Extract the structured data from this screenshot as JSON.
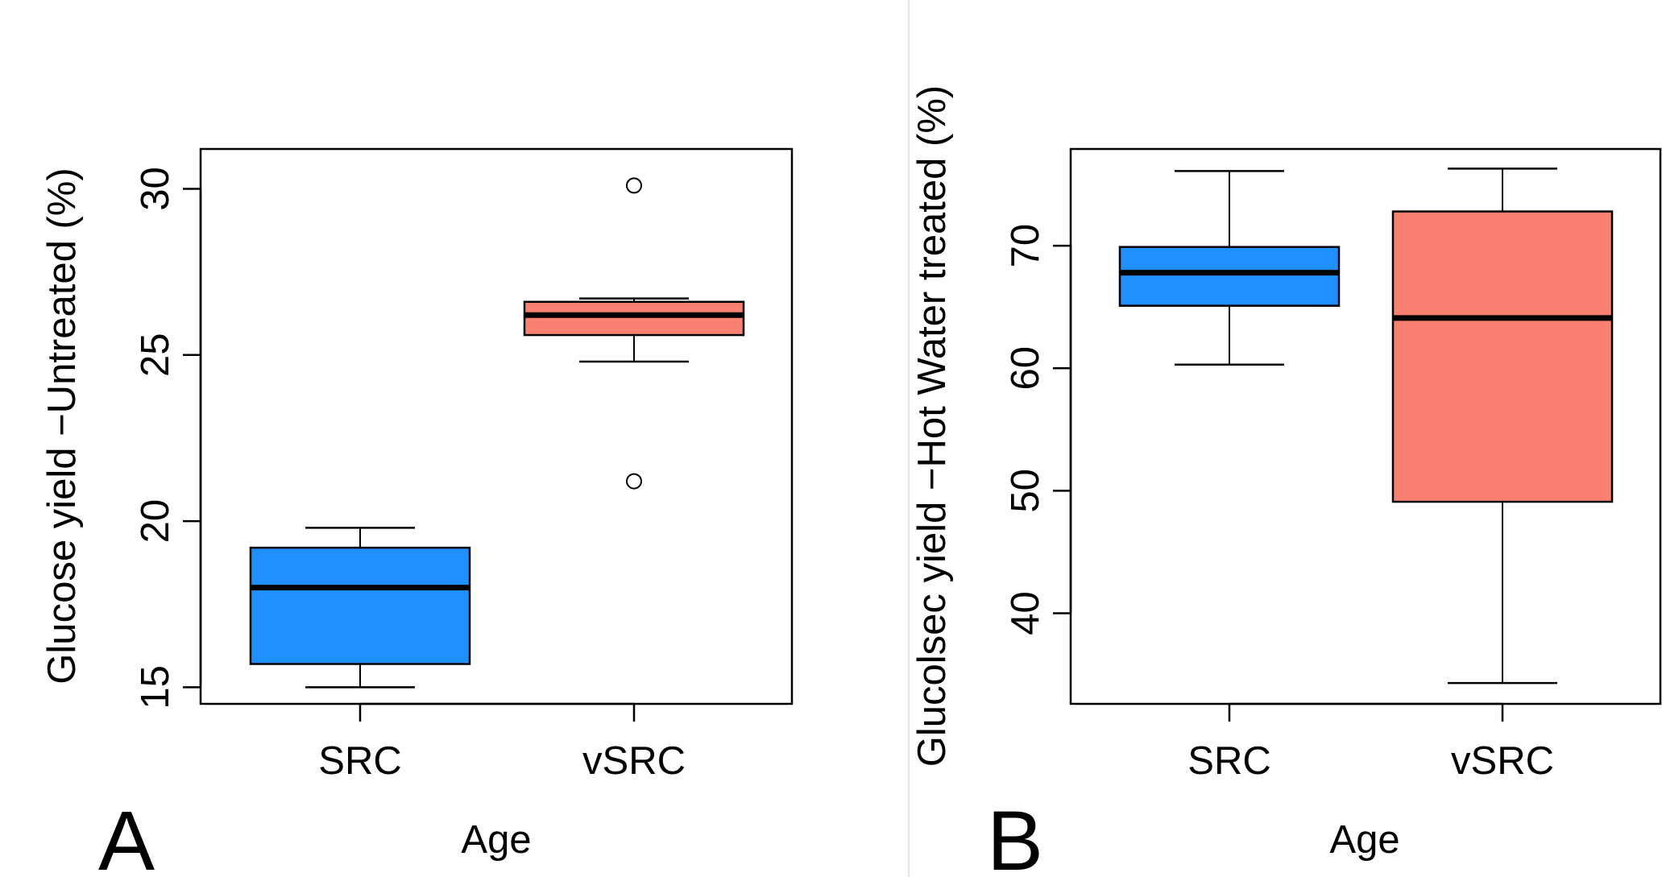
{
  "chart_data": [
    {
      "type": "box",
      "panel_label": "A",
      "title": "",
      "xlabel": "Age",
      "ylabel": "Glucose yield −Untreated (%)",
      "ylim": [
        14.5,
        31.2
      ],
      "yticks": [
        15,
        20,
        25,
        30
      ],
      "categories": [
        "SRC",
        "vSRC"
      ],
      "colors": [
        "#1e90ff",
        "#fa8072"
      ],
      "boxes": [
        {
          "category": "SRC",
          "whisker_low": 15.0,
          "q1": 15.7,
          "median": 18.0,
          "q3": 19.2,
          "whisker_high": 19.8,
          "outliers": []
        },
        {
          "category": "vSRC",
          "whisker_low": 24.8,
          "q1": 25.6,
          "median": 26.2,
          "q3": 26.6,
          "whisker_high": 26.7,
          "outliers": [
            30.1,
            21.2
          ]
        }
      ]
    },
    {
      "type": "box",
      "panel_label": "B",
      "title": "",
      "xlabel": "Age",
      "ylabel": "Glucolsec yield −Hot Water treated (%)",
      "ylim": [
        32.6,
        77.9
      ],
      "yticks": [
        40,
        50,
        60,
        70
      ],
      "categories": [
        "SRC",
        "vSRC"
      ],
      "colors": [
        "#1e90ff",
        "#fa8072"
      ],
      "boxes": [
        {
          "category": "SRC",
          "whisker_low": 60.3,
          "q1": 65.1,
          "median": 67.8,
          "q3": 69.9,
          "whisker_high": 76.1,
          "outliers": []
        },
        {
          "category": "vSRC",
          "whisker_low": 34.3,
          "q1": 49.1,
          "median": 64.1,
          "q3": 72.8,
          "whisker_high": 76.3,
          "outliers": []
        }
      ]
    }
  ]
}
